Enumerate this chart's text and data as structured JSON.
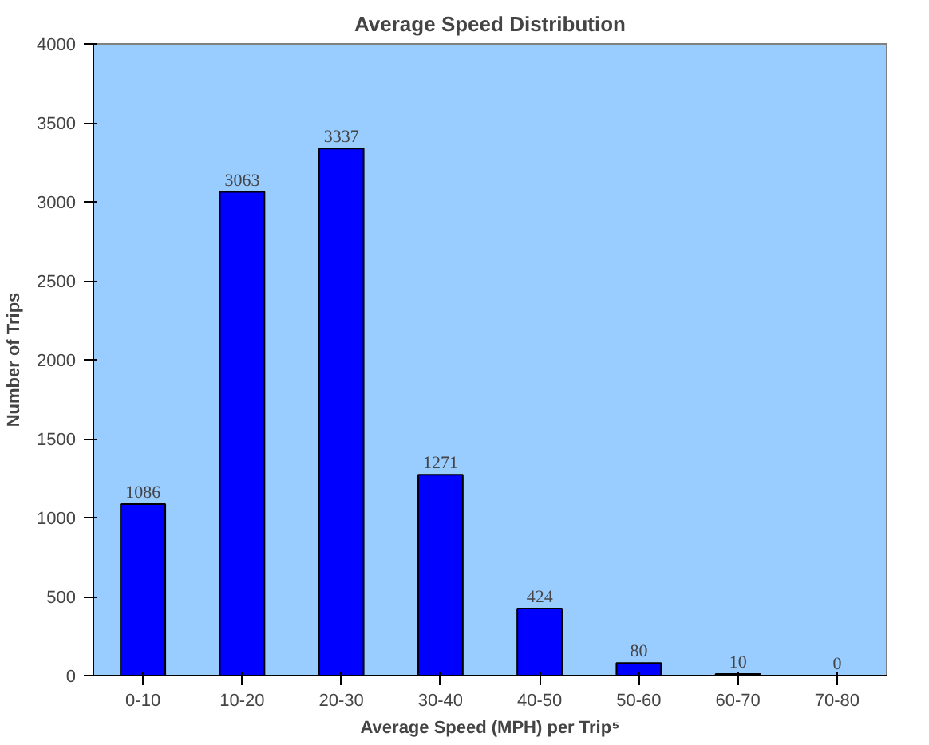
{
  "chart_data": {
    "type": "bar",
    "title": "Average Speed Distribution",
    "xlabel": "Average Speed (MPH) per Trip⁵",
    "ylabel": "Number of Trips",
    "categories": [
      "0-10",
      "10-20",
      "20-30",
      "30-40",
      "40-50",
      "50-60",
      "60-70",
      "70-80"
    ],
    "values": [
      1086,
      3063,
      3337,
      1271,
      424,
      80,
      10,
      0
    ],
    "color": "#0000ff",
    "ylim": [
      0,
      4000
    ],
    "yticks": [
      0,
      500,
      1000,
      1500,
      2000,
      2500,
      3000,
      3500,
      4000
    ],
    "grid": false,
    "data_labels": true
  }
}
